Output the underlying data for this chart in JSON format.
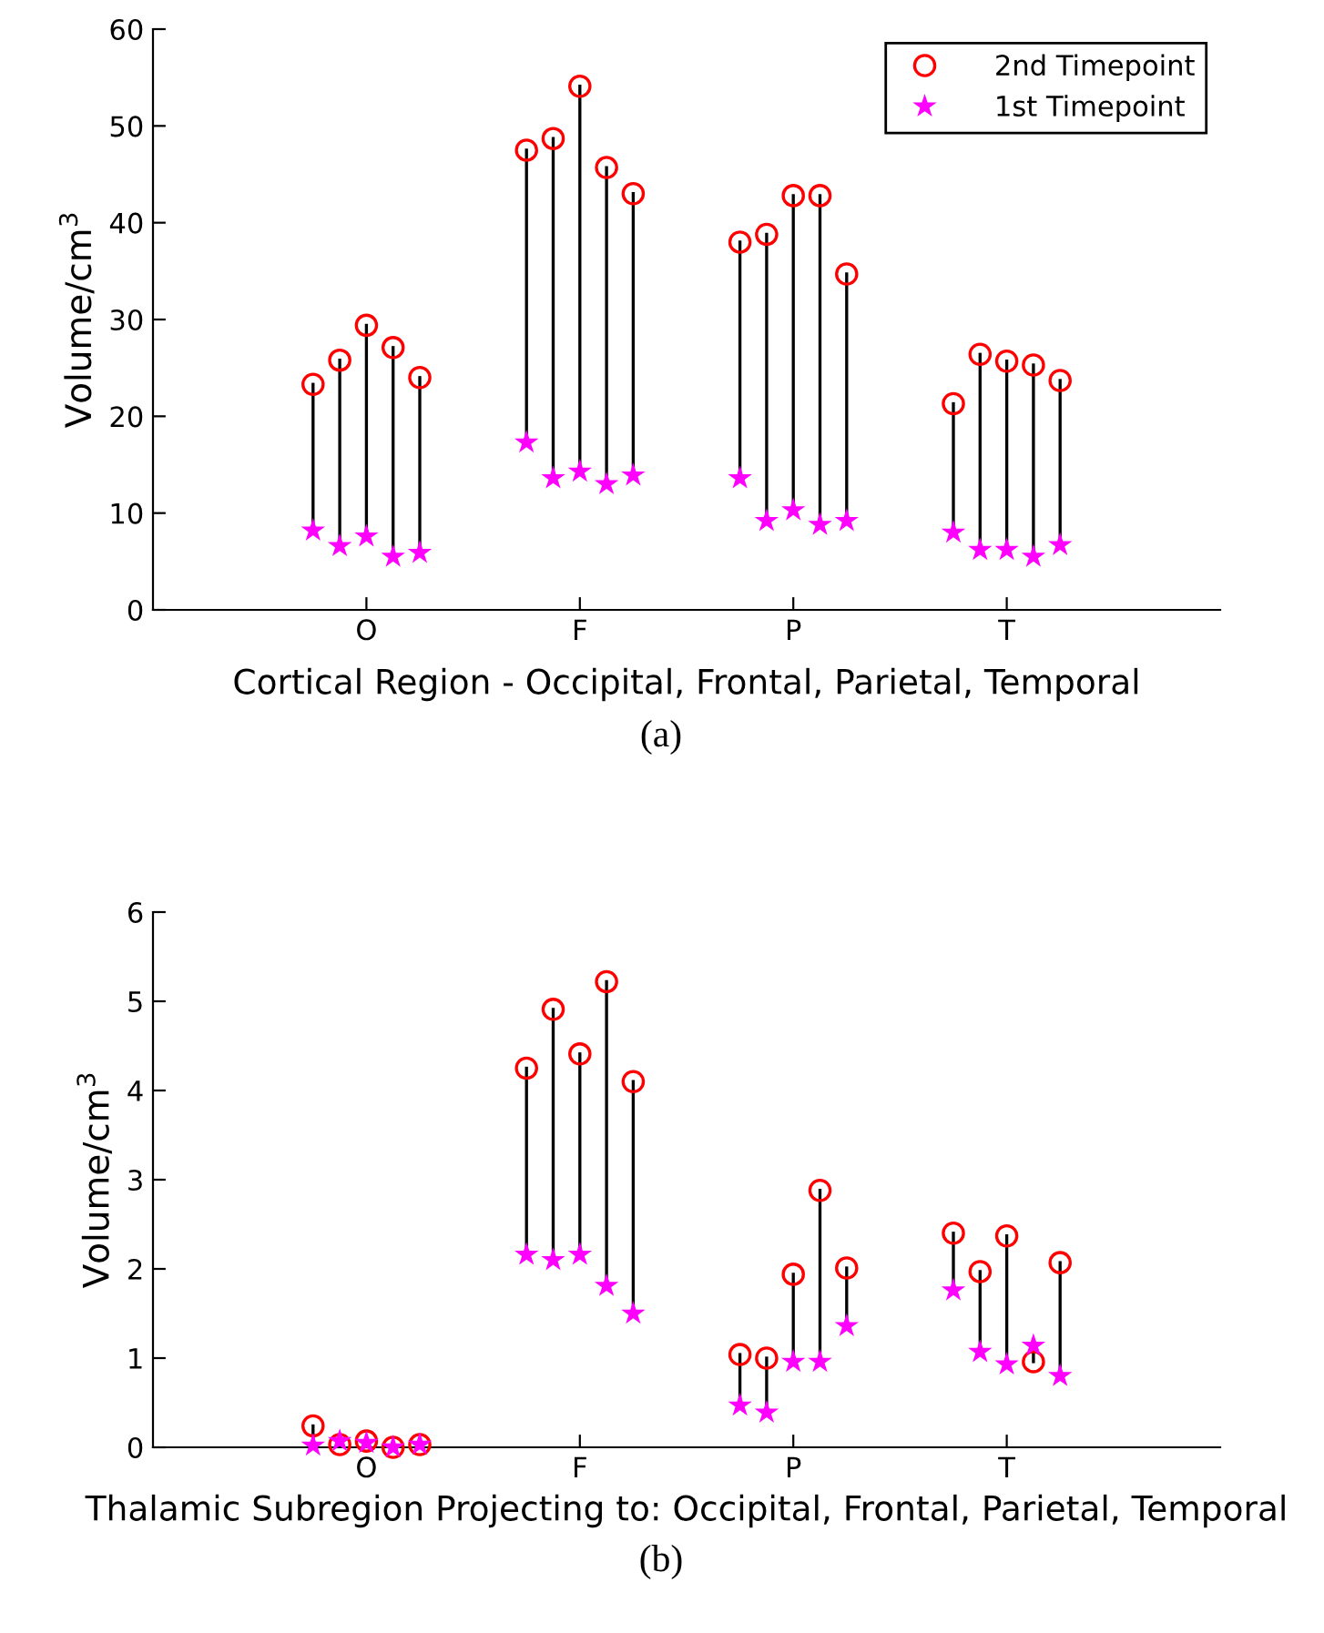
{
  "chart_data": [
    {
      "type": "scatter",
      "xlabel": "Cortical Region - Occipital, Frontal, Parietal, Temporal",
      "ylabel": "Volume/cm$^{3}$",
      "annotations": [
        "(a)"
      ],
      "categories": [
        null,
        null,
        null,
        null,
        null,
        null,
        null,
        null,
        "O",
        null,
        null,
        null,
        null,
        null,
        null,
        null,
        "F",
        null,
        null,
        null,
        null,
        null,
        null,
        null,
        "P",
        null,
        null,
        null,
        null,
        null,
        null,
        null,
        "T",
        null,
        null,
        null,
        null,
        null,
        null,
        null,
        null
      ],
      "ylim": [
        0,
        60
      ],
      "yticks": [
        0,
        10,
        20,
        30,
        40,
        50,
        60
      ],
      "grid": false,
      "legend": "top right",
      "series": [
        {
          "name": "2nd Timepoint",
          "color": "#ff0000",
          "marker": "circle",
          "values": [
            null,
            null,
            null,
            null,
            null,
            null,
            23.3,
            25.8,
            29.4,
            27.1,
            24.0,
            null,
            null,
            null,
            47.5,
            48.7,
            54.1,
            45.7,
            43.0,
            null,
            null,
            null,
            38.0,
            38.8,
            42.8,
            42.8,
            34.7,
            null,
            null,
            null,
            21.3,
            26.4,
            25.7,
            25.3,
            23.7,
            null,
            null,
            null,
            null,
            null,
            null
          ]
        },
        {
          "name": "1st Timepoint",
          "color": "#ff00ff",
          "marker": "star",
          "values": [
            null,
            null,
            null,
            null,
            null,
            null,
            8.2,
            6.6,
            7.6,
            5.5,
            5.9,
            null,
            null,
            null,
            17.3,
            13.6,
            14.3,
            13.0,
            13.9,
            null,
            null,
            null,
            13.6,
            9.2,
            10.3,
            8.8,
            9.2,
            null,
            null,
            null,
            8.0,
            6.2,
            6.2,
            5.5,
            6.7,
            null,
            null,
            null,
            null,
            null,
            null
          ]
        }
      ]
    },
    {
      "type": "scatter",
      "xlabel": "Thalamic Subregion Projecting to: Occipital, Frontal, Parietal, Temporal",
      "ylabel": "Volume/cm$^{3}$",
      "annotations": [
        "(b)"
      ],
      "categories": [
        null,
        null,
        null,
        null,
        null,
        null,
        null,
        null,
        "O",
        null,
        null,
        null,
        null,
        null,
        null,
        null,
        "F",
        null,
        null,
        null,
        null,
        null,
        null,
        null,
        "P",
        null,
        null,
        null,
        null,
        null,
        null,
        null,
        "T",
        null,
        null,
        null,
        null,
        null,
        null,
        null,
        null
      ],
      "ylim": [
        0,
        6
      ],
      "yticks": [
        0,
        1,
        2,
        3,
        4,
        5,
        6
      ],
      "grid": false,
      "legend": false,
      "series": [
        {
          "color": "#ff0000",
          "marker": "circle",
          "values": [
            null,
            null,
            null,
            null,
            null,
            null,
            0.24,
            0.03,
            0.07,
            0.0,
            0.03,
            null,
            null,
            null,
            4.25,
            4.91,
            4.41,
            5.22,
            4.1,
            null,
            null,
            null,
            1.04,
            1.0,
            1.94,
            2.88,
            2.01,
            null,
            null,
            null,
            2.4,
            1.97,
            2.37,
            0.96,
            2.07,
            null,
            null,
            null,
            null,
            null,
            null
          ]
        },
        {
          "color": "#ff00ff",
          "marker": "star",
          "values": [
            null,
            null,
            null,
            null,
            null,
            null,
            0.02,
            0.07,
            0.05,
            0.0,
            0.03,
            null,
            null,
            null,
            2.16,
            2.1,
            2.16,
            1.81,
            1.5,
            null,
            null,
            null,
            0.47,
            0.39,
            0.96,
            0.96,
            1.36,
            null,
            null,
            null,
            1.76,
            1.07,
            0.93,
            1.14,
            0.8,
            null,
            null,
            null,
            null,
            null,
            null
          ]
        }
      ]
    }
  ]
}
